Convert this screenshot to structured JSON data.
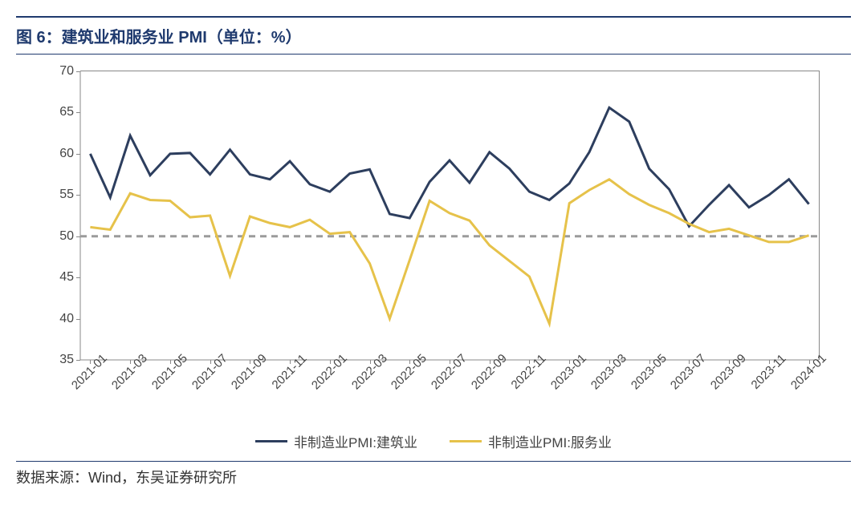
{
  "title": "图 6：建筑业和服务业 PMI（单位：%）",
  "source": "数据来源：Wind，东吴证券研究所",
  "chart": {
    "type": "line",
    "background_color": "#ffffff",
    "ylim": [
      35,
      70
    ],
    "yticks": [
      35,
      40,
      45,
      50,
      55,
      60,
      65,
      70
    ],
    "ytick_fontsize": 16,
    "xtick_fontsize": 15,
    "xtick_rotation": -45,
    "reference_line": {
      "y": 50,
      "color": "#9b9b9b",
      "dash": "8,6",
      "width": 3
    },
    "axis_color": "#888888",
    "x_labels_shown": [
      "2021-01",
      "2021-03",
      "2021-05",
      "2021-07",
      "2021-09",
      "2021-11",
      "2022-01",
      "2022-03",
      "2022-05",
      "2022-07",
      "2022-09",
      "2022-11",
      "2023-01",
      "2023-03",
      "2023-05",
      "2023-07",
      "2023-09",
      "2023-11",
      "2024-01"
    ],
    "x_categories": [
      "2021-01",
      "2021-02",
      "2021-03",
      "2021-04",
      "2021-05",
      "2021-06",
      "2021-07",
      "2021-08",
      "2021-09",
      "2021-10",
      "2021-11",
      "2021-12",
      "2022-01",
      "2022-02",
      "2022-03",
      "2022-04",
      "2022-05",
      "2022-06",
      "2022-07",
      "2022-08",
      "2022-09",
      "2022-10",
      "2022-11",
      "2022-12",
      "2023-01",
      "2023-02",
      "2023-03",
      "2023-04",
      "2023-05",
      "2023-06",
      "2023-07",
      "2023-08",
      "2023-09",
      "2023-10",
      "2023-11",
      "2023-12",
      "2024-01"
    ],
    "series": [
      {
        "name": "非制造业PMI:建筑业",
        "color": "#2d3e5e",
        "line_width": 3,
        "values": [
          60.0,
          54.7,
          62.2,
          57.4,
          60.0,
          60.1,
          57.5,
          60.5,
          57.5,
          56.9,
          59.1,
          56.3,
          55.4,
          57.6,
          58.1,
          52.7,
          52.2,
          56.6,
          59.2,
          56.5,
          60.2,
          58.2,
          55.4,
          54.4,
          56.4,
          60.2,
          65.6,
          63.9,
          58.2,
          55.7,
          51.2,
          53.8,
          56.2,
          53.5,
          55.0,
          56.9,
          53.9
        ]
      },
      {
        "name": "非制造业PMI:服务业",
        "color": "#e6c24a",
        "line_width": 3,
        "values": [
          51.1,
          50.8,
          55.2,
          54.4,
          54.3,
          52.3,
          52.5,
          45.2,
          52.4,
          51.6,
          51.1,
          52.0,
          50.3,
          50.5,
          46.7,
          40.0,
          47.1,
          54.3,
          52.8,
          51.9,
          48.9,
          47.0,
          45.1,
          39.4,
          54.0,
          55.6,
          56.9,
          55.1,
          53.8,
          52.8,
          51.5,
          50.5,
          50.9,
          50.1,
          49.3,
          49.3,
          50.1
        ]
      }
    ],
    "legend": {
      "position": "bottom",
      "fontsize": 17
    }
  }
}
